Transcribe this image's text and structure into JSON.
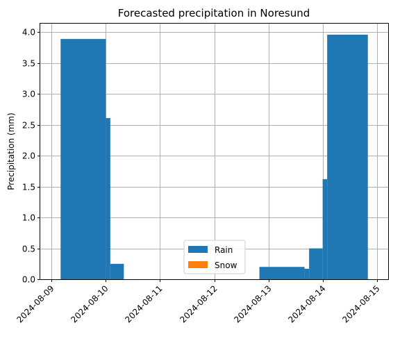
{
  "chart_data": {
    "type": "bar",
    "title": "Forecasted precipitation in Noresund",
    "xlabel": "",
    "ylabel": "Precipitation (mm)",
    "x_start": "2024-08-09",
    "x_ticks": [
      "2024-08-09",
      "2024-08-10",
      "2024-08-11",
      "2024-08-12",
      "2024-08-13",
      "2024-08-14",
      "2024-08-15"
    ],
    "xlim": [
      "2024-08-08T19:00",
      "2024-08-15T05:00"
    ],
    "ylim": [
      0,
      4.15
    ],
    "y_ticks": [
      "0.0",
      "0.5",
      "1.0",
      "1.5",
      "2.0",
      "2.5",
      "3.0",
      "3.5",
      "4.0"
    ],
    "grid": true,
    "legend": {
      "position": "lower center",
      "entries": [
        "Rain",
        "Snow"
      ]
    },
    "colors": {
      "Rain": "#1f77b4",
      "Snow": "#ff7f0e"
    },
    "series": [
      {
        "name": "Rain",
        "bars": [
          {
            "start": "2024-08-09T04:00",
            "end": "2024-08-10T00:00",
            "value": 3.89
          },
          {
            "start": "2024-08-10T00:00",
            "end": "2024-08-10T02:00",
            "value": 2.61
          },
          {
            "start": "2024-08-10T02:00",
            "end": "2024-08-10T08:00",
            "value": 0.25
          },
          {
            "start": "2024-08-12T20:00",
            "end": "2024-08-13T16:00",
            "value": 0.2
          },
          {
            "start": "2024-08-13T16:00",
            "end": "2024-08-13T18:00",
            "value": 0.17
          },
          {
            "start": "2024-08-13T18:00",
            "end": "2024-08-14T00:00",
            "value": 0.5
          },
          {
            "start": "2024-08-14T00:00",
            "end": "2024-08-14T02:00",
            "value": 1.62
          },
          {
            "start": "2024-08-14T02:00",
            "end": "2024-08-14T20:00",
            "value": 3.96
          }
        ]
      },
      {
        "name": "Snow",
        "bars": []
      }
    ]
  }
}
